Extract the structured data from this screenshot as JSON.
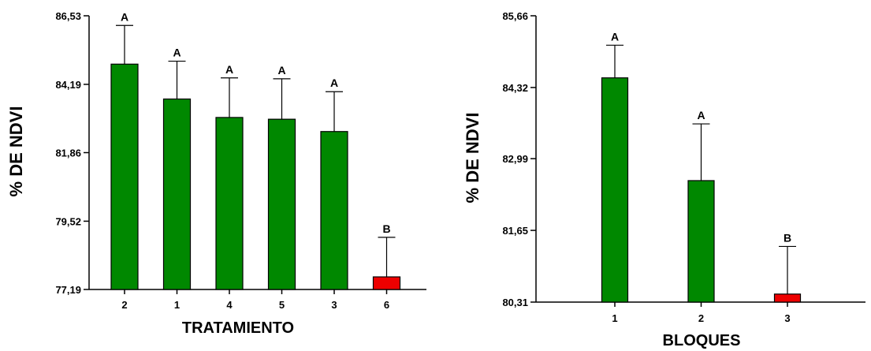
{
  "chart_data": [
    {
      "type": "bar",
      "title": "",
      "xlabel": "TRATAMIENTO",
      "ylabel": "% DE NDVI",
      "categories": [
        "2",
        "1",
        "4",
        "5",
        "3",
        "6"
      ],
      "values": [
        84.88,
        83.69,
        83.06,
        83.0,
        82.58,
        77.62
      ],
      "error_upper": [
        86.2,
        84.98,
        84.41,
        84.38,
        83.94,
        78.97
      ],
      "letters": [
        "A",
        "A",
        "A",
        "A",
        "A",
        "B"
      ],
      "bar_colors": [
        "#008800",
        "#008800",
        "#008800",
        "#008800",
        "#008800",
        "#ee0000"
      ],
      "ylim": [
        77.19,
        86.53
      ],
      "yticks": [
        77.19,
        79.52,
        81.86,
        84.19,
        86.53
      ],
      "ytick_labels": [
        "77,19",
        "79,52",
        "81,86",
        "84,19",
        "86,53"
      ],
      "grid": false,
      "legend": "none"
    },
    {
      "type": "bar",
      "title": "",
      "xlabel": "BLOQUES",
      "ylabel": "% DE NDVI",
      "categories": [
        "1",
        "2",
        "3"
      ],
      "values": [
        84.5,
        82.58,
        80.46
      ],
      "error_upper": [
        85.11,
        83.64,
        81.35
      ],
      "letters": [
        "A",
        "A",
        "B"
      ],
      "bar_colors": [
        "#008800",
        "#008800",
        "#ee0000"
      ],
      "ylim": [
        80.31,
        85.66
      ],
      "yticks": [
        80.31,
        81.65,
        82.99,
        84.32,
        85.66
      ],
      "ytick_labels": [
        "80,31",
        "81,65",
        "82,99",
        "84,32",
        "85,66"
      ],
      "grid": false,
      "legend": "none"
    }
  ]
}
